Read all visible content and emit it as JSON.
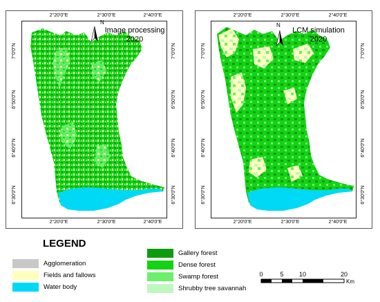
{
  "maps": [
    {
      "title_line1": "Image processing",
      "title_line2": "2020",
      "north_label": "N",
      "top_coords": [
        "2°20'0\"E",
        "2°30'0\"E",
        "2°40'0\"E"
      ],
      "bottom_coords": [
        "2°20'0\"E",
        "2°30'0\"E",
        "2°40'0\"E"
      ],
      "left_coords": [
        "7°0'0\"N",
        "6°50'0\"N",
        "6°40'0\"N",
        "6°30'0\"N"
      ],
      "right_coords": [
        "7°0'0\"N",
        "6°50'0\"N",
        "6°40'0\"N",
        "6°30'0\"N"
      ]
    },
    {
      "title_line1": "LCM simulation",
      "title_line2": "2020",
      "north_label": "N",
      "top_coords": [
        "2°20'0\"E",
        "2°30'0\"E",
        "2°40'0\"E"
      ],
      "bottom_coords": [
        "2°20'0\"E",
        "2°30'0\"E",
        "2°40'0\"E"
      ],
      "left_coords": [
        "7°0'0\"N",
        "6°50'0\"N",
        "6°40'0\"N",
        "6°30'0\"N"
      ],
      "right_coords": [
        "7°0'0\"N",
        "6°50'0\"N",
        "6°40'0\"N",
        "6°30'0\"N"
      ]
    }
  ],
  "legend": {
    "title": "LEGEND",
    "items": [
      {
        "label": "Agglomeration",
        "color": "#c8c8c8"
      },
      {
        "label": "Fields and fallows",
        "color": "#ffffbe"
      },
      {
        "label": "Water body",
        "color": "#00d9f5"
      },
      {
        "label": "Gallery forest",
        "color": "#0f9b0f"
      },
      {
        "label": "Dense forest",
        "color": "#14d214"
      },
      {
        "label": "Swamp forest",
        "color": "#6cf06c"
      },
      {
        "label": "Shrubby tree savannah",
        "color": "#c0f7c0"
      }
    ]
  },
  "scale": {
    "ticks": [
      "0",
      "5",
      "10",
      "20"
    ],
    "unit": "Km"
  }
}
